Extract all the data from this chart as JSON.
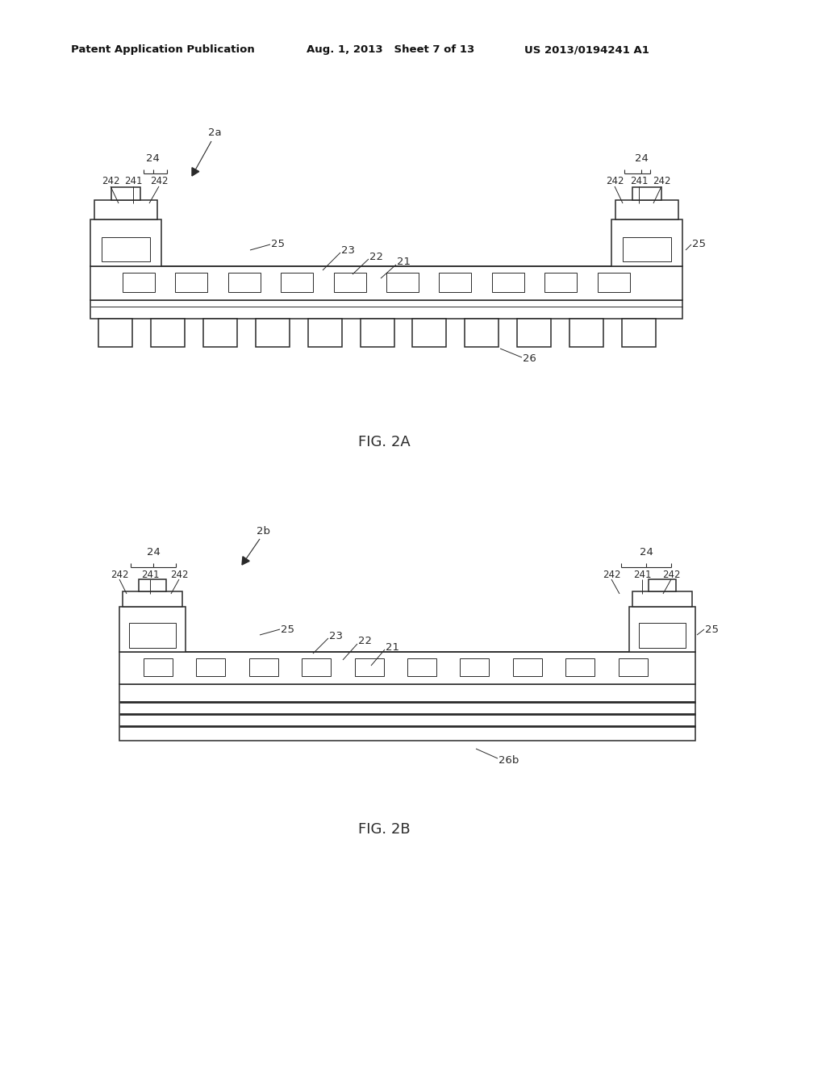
{
  "fig_width": 10.24,
  "fig_height": 13.2,
  "bg_color": "#ffffff",
  "header_left": "Patent Application Publication",
  "header_mid": "Aug. 1, 2013   Sheet 7 of 13",
  "header_right": "US 2013/0194241 A1",
  "fig2a_label": "FIG. 2A",
  "fig2b_label": "FIG. 2B",
  "lc": "#2a2a2a",
  "lw": 1.1,
  "tlw": 0.7,
  "fs": 9.5,
  "fs_small": 8.5,
  "fs_caption": 13
}
